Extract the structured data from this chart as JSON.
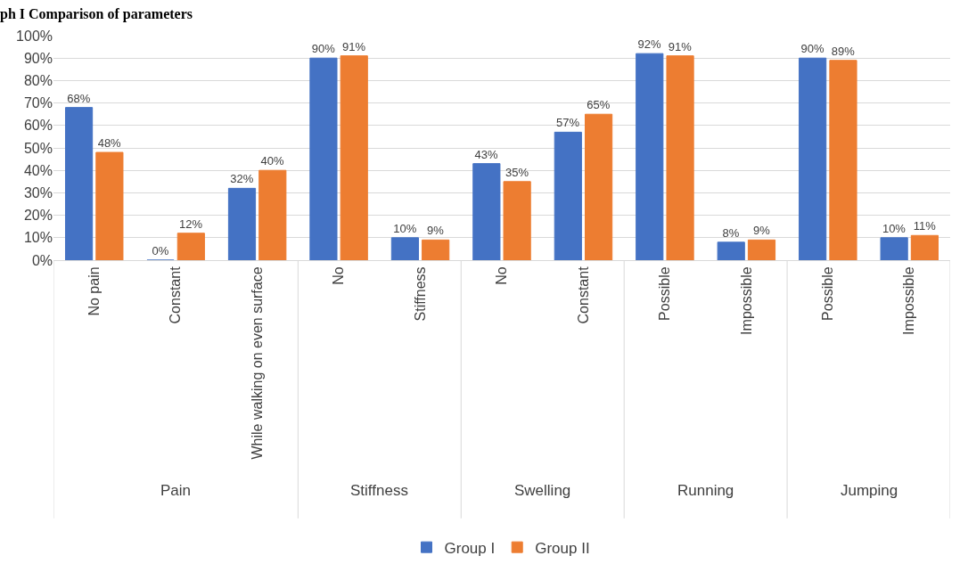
{
  "chart_data": {
    "type": "bar",
    "title": "ph I Comparison of parameters",
    "categories": [
      "No pain",
      "Constant",
      "While walking on even surface",
      "No",
      "Stiffness",
      "No",
      "Constant",
      "Possible",
      "Impossible",
      "Possible",
      "Impossible"
    ],
    "series": [
      {
        "name": "Group I",
        "color": "#4472c4",
        "values": [
          68,
          0,
          32,
          90,
          10,
          43,
          57,
          92,
          8,
          90,
          10
        ],
        "value_labels": [
          "68%",
          "0%",
          "32%",
          "90%",
          "10%",
          "43%",
          "57%",
          "92%",
          "8%",
          "90%",
          "10%"
        ]
      },
      {
        "name": "Group II",
        "color": "#ed7d31",
        "values": [
          48,
          12,
          40,
          91,
          9,
          35,
          65,
          91,
          9,
          89,
          11
        ],
        "value_labels": [
          "48%",
          "12%",
          "40%",
          "91%",
          "9%",
          "35%",
          "65%",
          "91%",
          "9%",
          "89%",
          "11%"
        ]
      }
    ],
    "annotations": [
      "Pain",
      "Stiffness",
      "Swelling",
      "Running",
      "Jumping"
    ],
    "ylim": [
      0,
      100
    ],
    "yticks": [
      {
        "value": 0,
        "label": "0%"
      },
      {
        "value": 10,
        "label": "10%"
      },
      {
        "value": 20,
        "label": "20%"
      },
      {
        "value": 30,
        "label": "30%"
      },
      {
        "value": 40,
        "label": "40%"
      },
      {
        "value": 50,
        "label": "50%"
      },
      {
        "value": 60,
        "label": "60%"
      },
      {
        "value": 70,
        "label": "70%"
      },
      {
        "value": 80,
        "label": "80%"
      },
      {
        "value": 90,
        "label": "90%"
      },
      {
        "value": 100,
        "label": "100%"
      }
    ],
    "grid": "y",
    "legend": "bottom"
  }
}
